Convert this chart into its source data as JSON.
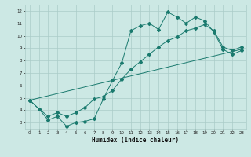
{
  "xlabel": "Humidex (Indice chaleur)",
  "ylabel": "",
  "xlim": [
    -0.5,
    23.5
  ],
  "ylim": [
    2.5,
    12.5
  ],
  "xticks": [
    0,
    1,
    2,
    3,
    4,
    5,
    6,
    7,
    8,
    9,
    10,
    11,
    12,
    13,
    14,
    15,
    16,
    17,
    18,
    19,
    20,
    21,
    22,
    23
  ],
  "yticks": [
    3,
    4,
    5,
    6,
    7,
    8,
    9,
    10,
    11,
    12
  ],
  "bg_color": "#cce8e4",
  "grid_color": "#aaccc8",
  "line_color": "#1a7a6e",
  "line1_x": [
    0,
    1,
    2,
    3,
    4,
    5,
    6,
    7,
    8,
    9,
    10,
    11,
    12,
    13,
    14,
    15,
    16,
    17,
    18,
    19,
    20,
    21,
    22,
    23
  ],
  "line1_y": [
    4.8,
    4.1,
    3.2,
    3.5,
    2.7,
    3.0,
    3.1,
    3.3,
    4.9,
    6.4,
    7.8,
    10.4,
    10.8,
    11.0,
    10.5,
    11.9,
    11.5,
    11.0,
    11.5,
    11.2,
    10.3,
    8.9,
    8.5,
    8.8
  ],
  "line2_x": [
    0,
    1,
    2,
    3,
    4,
    5,
    6,
    7,
    8,
    9,
    10,
    11,
    12,
    13,
    14,
    15,
    16,
    17,
    18,
    19,
    20,
    21,
    22,
    23
  ],
  "line2_y": [
    4.8,
    4.1,
    3.5,
    3.8,
    3.5,
    3.8,
    4.2,
    4.9,
    5.1,
    5.6,
    6.5,
    7.3,
    7.9,
    8.5,
    9.1,
    9.6,
    9.9,
    10.4,
    10.6,
    10.9,
    10.4,
    9.1,
    8.8,
    9.1
  ],
  "line3_x": [
    0,
    23
  ],
  "line3_y": [
    4.8,
    8.9
  ]
}
